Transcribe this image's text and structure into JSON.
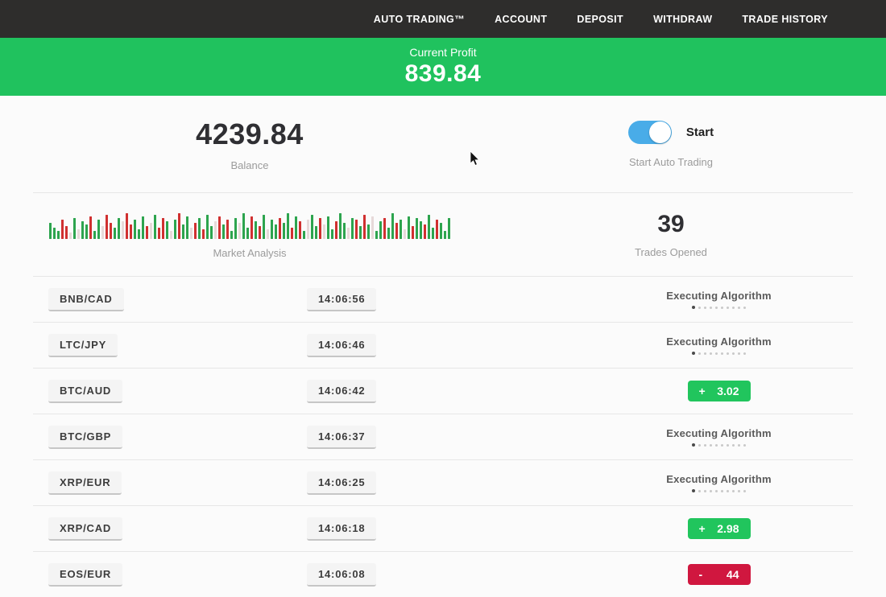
{
  "nav": {
    "background": "#2e2d2c",
    "items": [
      "AUTO TRADING™",
      "ACCOUNT",
      "DEPOSIT",
      "WITHDRAW",
      "TRADE HISTORY"
    ]
  },
  "profit_banner": {
    "label": "Current Profit",
    "value": "839.84",
    "background": "#20c25e"
  },
  "summary": {
    "balance_value": "4239.84",
    "balance_label": "Balance",
    "toggle_label": "Start",
    "toggle_caption": "Start Auto Trading",
    "toggle_state": "on",
    "trades_opened_value": "39",
    "trades_opened_label": "Trades Opened",
    "market_label": "Market Analysis"
  },
  "chart_data": {
    "type": "bar",
    "title": "Market Analysis",
    "note": "decorative market-activity strip; g=green up-tick, r=red down-tick, p=pale neutral; value = bar height px (max 36)",
    "bars": [
      [
        20,
        "g"
      ],
      [
        14,
        "g"
      ],
      [
        10,
        "g"
      ],
      [
        24,
        "r"
      ],
      [
        16,
        "r"
      ],
      [
        8,
        "p"
      ],
      [
        26,
        "g"
      ],
      [
        12,
        "p"
      ],
      [
        22,
        "g"
      ],
      [
        18,
        "g"
      ],
      [
        28,
        "r"
      ],
      [
        10,
        "g"
      ],
      [
        24,
        "g"
      ],
      [
        16,
        "p"
      ],
      [
        30,
        "r"
      ],
      [
        20,
        "r"
      ],
      [
        14,
        "g"
      ],
      [
        26,
        "g"
      ],
      [
        22,
        "p"
      ],
      [
        32,
        "r"
      ],
      [
        18,
        "r"
      ],
      [
        24,
        "g"
      ],
      [
        12,
        "g"
      ],
      [
        28,
        "g"
      ],
      [
        16,
        "r"
      ],
      [
        20,
        "p"
      ],
      [
        30,
        "g"
      ],
      [
        14,
        "r"
      ],
      [
        26,
        "r"
      ],
      [
        22,
        "g"
      ],
      [
        10,
        "p"
      ],
      [
        24,
        "g"
      ],
      [
        32,
        "r"
      ],
      [
        18,
        "g"
      ],
      [
        28,
        "g"
      ],
      [
        14,
        "p"
      ],
      [
        20,
        "r"
      ],
      [
        26,
        "g"
      ],
      [
        12,
        "r"
      ],
      [
        30,
        "g"
      ],
      [
        16,
        "g"
      ],
      [
        22,
        "p"
      ],
      [
        28,
        "r"
      ],
      [
        18,
        "g"
      ],
      [
        24,
        "r"
      ],
      [
        10,
        "g"
      ],
      [
        26,
        "g"
      ],
      [
        20,
        "p"
      ],
      [
        32,
        "g"
      ],
      [
        14,
        "g"
      ],
      [
        28,
        "r"
      ],
      [
        22,
        "g"
      ],
      [
        16,
        "r"
      ],
      [
        30,
        "g"
      ],
      [
        12,
        "p"
      ],
      [
        24,
        "g"
      ],
      [
        18,
        "g"
      ],
      [
        26,
        "r"
      ],
      [
        20,
        "g"
      ],
      [
        32,
        "g"
      ],
      [
        14,
        "r"
      ],
      [
        28,
        "g"
      ],
      [
        22,
        "r"
      ],
      [
        10,
        "g"
      ],
      [
        24,
        "p"
      ],
      [
        30,
        "g"
      ],
      [
        16,
        "g"
      ],
      [
        26,
        "r"
      ],
      [
        18,
        "p"
      ],
      [
        28,
        "g"
      ],
      [
        12,
        "g"
      ],
      [
        22,
        "r"
      ],
      [
        32,
        "g"
      ],
      [
        20,
        "g"
      ],
      [
        14,
        "p"
      ],
      [
        26,
        "g"
      ],
      [
        24,
        "r"
      ],
      [
        16,
        "g"
      ],
      [
        30,
        "r"
      ],
      [
        18,
        "g"
      ],
      [
        28,
        "p"
      ],
      [
        10,
        "g"
      ],
      [
        22,
        "g"
      ],
      [
        26,
        "r"
      ],
      [
        14,
        "g"
      ],
      [
        32,
        "g"
      ],
      [
        20,
        "r"
      ],
      [
        24,
        "g"
      ],
      [
        12,
        "p"
      ],
      [
        28,
        "g"
      ],
      [
        16,
        "r"
      ],
      [
        26,
        "g"
      ],
      [
        22,
        "g"
      ],
      [
        18,
        "r"
      ],
      [
        30,
        "g"
      ],
      [
        14,
        "g"
      ],
      [
        24,
        "r"
      ],
      [
        20,
        "g"
      ],
      [
        10,
        "g"
      ],
      [
        26,
        "g"
      ]
    ]
  },
  "trades": [
    {
      "pair": "BNB/CAD",
      "time": "14:06:56",
      "status": "executing",
      "status_label": "Executing Algorithm"
    },
    {
      "pair": "LTC/JPY",
      "time": "14:06:46",
      "status": "executing",
      "status_label": "Executing Algorithm"
    },
    {
      "pair": "BTC/AUD",
      "time": "14:06:42",
      "status": "result",
      "result": {
        "sign": "+",
        "value": "3.02",
        "type": "profit"
      }
    },
    {
      "pair": "BTC/GBP",
      "time": "14:06:37",
      "status": "executing",
      "status_label": "Executing Algorithm"
    },
    {
      "pair": "XRP/EUR",
      "time": "14:06:25",
      "status": "executing",
      "status_label": "Executing Algorithm"
    },
    {
      "pair": "XRP/CAD",
      "time": "14:06:18",
      "status": "result",
      "result": {
        "sign": "+",
        "value": "2.98",
        "type": "profit"
      }
    },
    {
      "pair": "EOS/EUR",
      "time": "14:06:08",
      "status": "result",
      "result": {
        "sign": "-",
        "value": "44",
        "type": "loss"
      }
    }
  ],
  "colors": {
    "banner_green": "#20c25e",
    "profit_green": "#21c55d",
    "loss_red": "#d0173f",
    "toggle_blue": "#49ace8",
    "nav_dark": "#2e2d2c",
    "bar_green": "#2da44e",
    "bar_red": "#d03030",
    "bar_pale": "#e7d9d9"
  }
}
